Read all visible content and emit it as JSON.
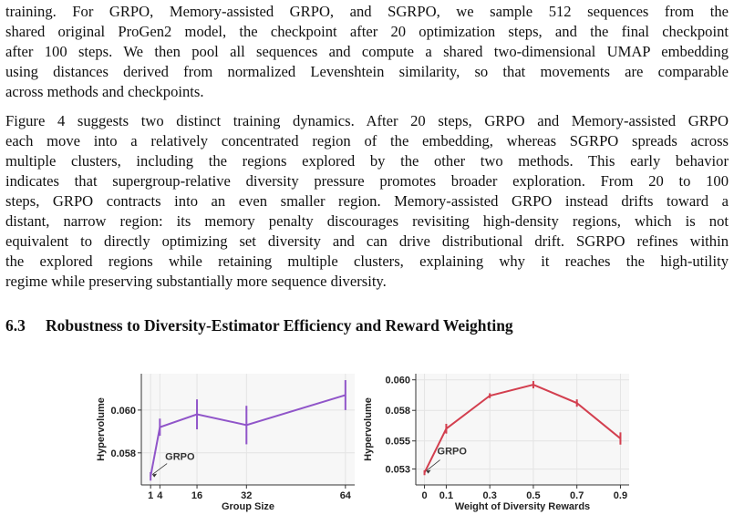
{
  "paragraph1": [
    "training.  For GRPO, Memory-assisted GRPO, and SGRPO, we sample 512 sequences from the",
    "shared original ProGen2 model, the checkpoint after 20 optimization steps, and the final checkpoint",
    "after 100 steps. We then pool all sequences and compute a shared two-dimensional UMAP embedding",
    "using distances derived from normalized Levenshtein similarity, so that movements are comparable",
    "across methods and checkpoints."
  ],
  "paragraph2": [
    "Figure 4 suggests two distinct training dynamics. After 20 steps, GRPO and Memory-assisted GRPO",
    "each move into a relatively concentrated region of the embedding, whereas SGRPO spreads across",
    "multiple clusters, including the regions explored by the other two methods.  This early behavior",
    "indicates that supergroup-relative diversity pressure promotes broader exploration. From 20 to 100",
    "steps, GRPO contracts into an even smaller region. Memory-assisted GRPO instead drifts toward a",
    "distant, narrow region: its memory penalty discourages revisiting high-density regions, which is not",
    "equivalent to directly optimizing set diversity and can drive distributional drift. SGRPO refines within",
    "the explored regions while retaining multiple clusters, explaining why it reaches the high-utility",
    "regime while preserving substantially more sequence diversity."
  ],
  "section": {
    "number": "6.3",
    "title": "Robustness to Diversity-Estimator Efficiency and Reward Weighting"
  },
  "colors": {
    "left_series": "#9055c9",
    "right_series": "#d33f4f",
    "grid": "#e4e4e4",
    "plot_bg": "#f7f7f7"
  },
  "chart_data": [
    {
      "type": "line",
      "xlabel": "Group Size",
      "ylabel": "Hypervolume",
      "x": [
        1,
        4,
        16,
        32,
        64
      ],
      "x_ticks": [
        "1",
        "4",
        "16",
        "32",
        "64"
      ],
      "y_ticks": [
        "0.058",
        "0.060"
      ],
      "y_tick_values": [
        0.058,
        0.06
      ],
      "xlim": [
        -2,
        67
      ],
      "ylim": [
        0.0565,
        0.0617
      ],
      "values": [
        0.0569,
        0.0592,
        0.0598,
        0.0593,
        0.0607
      ],
      "error": [
        0.0002,
        0.0004,
        0.0007,
        0.0009,
        0.0007
      ],
      "annotation": "GRPO",
      "grid": true
    },
    {
      "type": "line",
      "xlabel": "Weight of Diversity Rewards",
      "ylabel": "Hypervolume",
      "x": [
        0,
        0.1,
        0.3,
        0.5,
        0.7,
        0.9
      ],
      "x_ticks": [
        "0",
        "0.1",
        "0.3",
        "0.5",
        "0.7",
        "0.9"
      ],
      "y_ticks": [
        "0.053",
        "0.055",
        "0.058",
        "0.060"
      ],
      "y_tick_values": [
        0.0529,
        0.0552,
        0.0577,
        0.0602
      ],
      "xlim": [
        -0.04,
        0.94
      ],
      "ylim": [
        0.0516,
        0.0607
      ],
      "values": [
        0.0526,
        0.0562,
        0.0589,
        0.0598,
        0.0583,
        0.0554
      ],
      "error": [
        0.0002,
        0.0004,
        0.0002,
        0.0003,
        0.0003,
        0.0005
      ],
      "annotation": "GRPO",
      "grid": true
    }
  ]
}
